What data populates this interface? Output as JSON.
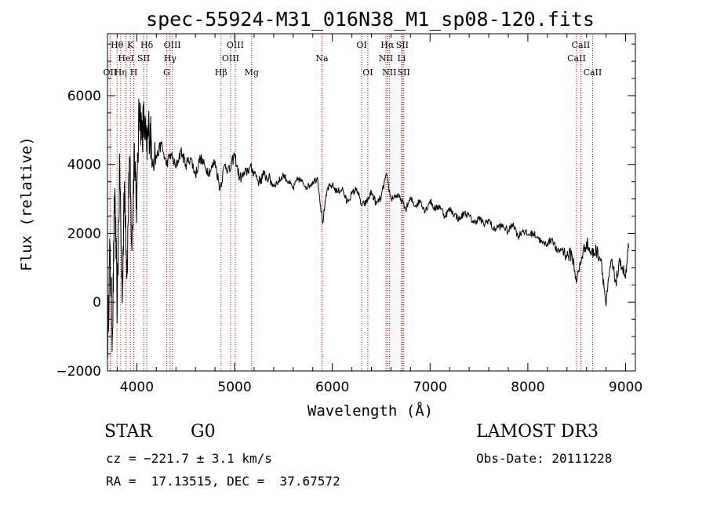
{
  "chart_data": {
    "type": "line",
    "title": "spec-55924-M31_016N38_M1_sp08-120.fits",
    "xlabel": "Wavelength (Å)",
    "ylabel": "Flux (relative)",
    "xlim": [
      3700,
      9100
    ],
    "ylim": [
      -2000,
      7800
    ],
    "x_ticks": [
      4000,
      5000,
      6000,
      7000,
      8000,
      9000
    ],
    "y_ticks": [
      -2000,
      0,
      2000,
      4000,
      6000
    ],
    "x_tick_labels": [
      "4000",
      "5000",
      "6000",
      "7000",
      "8000",
      "9000"
    ],
    "y_tick_labels": [
      "−2000",
      "0",
      "2000",
      "4000",
      "6000"
    ],
    "series": [
      {
        "name": "flux",
        "x": [
          3700,
          3725,
          3750,
          3775,
          3800,
          3825,
          3850,
          3875,
          3900,
          3925,
          3950,
          3975,
          4000,
          4025,
          4050,
          4075,
          4100,
          4125,
          4150,
          4200,
          4250,
          4300,
          4350,
          4400,
          4450,
          4500,
          4550,
          4600,
          4650,
          4700,
          4750,
          4800,
          4850,
          4900,
          4950,
          5000,
          5050,
          5100,
          5150,
          5200,
          5250,
          5300,
          5350,
          5400,
          5450,
          5500,
          5550,
          5600,
          5650,
          5700,
          5750,
          5800,
          5850,
          5900,
          5950,
          6000,
          6050,
          6100,
          6150,
          6200,
          6250,
          6300,
          6350,
          6400,
          6450,
          6500,
          6550,
          6600,
          6650,
          6700,
          6750,
          6800,
          6850,
          6900,
          6950,
          7000,
          7050,
          7100,
          7150,
          7200,
          7250,
          7300,
          7350,
          7400,
          7450,
          7500,
          7550,
          7600,
          7650,
          7700,
          7750,
          7800,
          7850,
          7900,
          7950,
          8000,
          8050,
          8100,
          8150,
          8200,
          8250,
          8300,
          8350,
          8400,
          8450,
          8500,
          8550,
          8600,
          8650,
          8700,
          8750,
          8800,
          8850,
          8900,
          8950,
          9000,
          9030
        ],
        "values": [
          -1300,
          1500,
          -1000,
          3300,
          -300,
          4000,
          200,
          3500,
          800,
          4200,
          1500,
          4600,
          2800,
          5800,
          4900,
          5300,
          4400,
          5100,
          4600,
          4200,
          4600,
          4000,
          4300,
          3900,
          4400,
          4000,
          4200,
          3700,
          4200,
          3900,
          3800,
          4100,
          3300,
          4000,
          3800,
          4300,
          3600,
          3700,
          3900,
          3800,
          3500,
          3700,
          3600,
          3400,
          3500,
          3700,
          3500,
          3300,
          3600,
          3450,
          3350,
          3500,
          3600,
          2300,
          3300,
          3400,
          3200,
          3300,
          2900,
          3150,
          3300,
          2800,
          2900,
          3200,
          2850,
          3050,
          3700,
          3000,
          3100,
          3000,
          2700,
          3000,
          2800,
          2950,
          2650,
          2950,
          2700,
          2800,
          2500,
          2700,
          2550,
          2400,
          2600,
          2500,
          2300,
          2450,
          2250,
          2400,
          2100,
          2200,
          2200,
          2050,
          2300,
          1900,
          2100,
          1950,
          2000,
          1900,
          1700,
          1700,
          1850,
          1450,
          1550,
          1350,
          1400,
          600,
          1300,
          1750,
          1400,
          1500,
          1250,
          -100,
          1200,
          600,
          1200,
          700,
          1600
        ]
      }
    ],
    "emission_lines": [
      {
        "label": "OII",
        "x": 3727,
        "row": 3
      },
      {
        "label": "Hθ",
        "x": 3798,
        "row": 1
      },
      {
        "label": "Hη",
        "x": 3835,
        "row": 3
      },
      {
        "label": "HeI",
        "x": 3889,
        "row": 2
      },
      {
        "label": "K",
        "x": 3934,
        "row": 1
      },
      {
        "label": "H",
        "x": 3969,
        "row": 3
      },
      {
        "label": "SII",
        "x": 4070,
        "row": 2
      },
      {
        "label": "Hδ",
        "x": 4102,
        "row": 1
      },
      {
        "label": "G",
        "x": 4305,
        "row": 3
      },
      {
        "label": "Hγ",
        "x": 4341,
        "row": 2
      },
      {
        "label": "OIII",
        "x": 4363,
        "row": 1
      },
      {
        "label": "Hβ",
        "x": 4861,
        "row": 3
      },
      {
        "label": "OIII",
        "x": 4959,
        "row": 2
      },
      {
        "label": "OIII",
        "x": 5007,
        "row": 1
      },
      {
        "label": "Mg",
        "x": 5175,
        "row": 3
      },
      {
        "label": "Na",
        "x": 5894,
        "row": 2
      },
      {
        "label": "OI",
        "x": 6300,
        "row": 1
      },
      {
        "label": "OI",
        "x": 6363,
        "row": 3
      },
      {
        "label": "NII",
        "x": 6548,
        "row": 2
      },
      {
        "label": "Hα",
        "x": 6563,
        "row": 1
      },
      {
        "label": "NII",
        "x": 6583,
        "row": 3
      },
      {
        "label": "Li",
        "x": 6708,
        "row": 2
      },
      {
        "label": "SII",
        "x": 6716,
        "row": 1
      },
      {
        "label": "SII",
        "x": 6731,
        "row": 3
      },
      {
        "label": "CaII",
        "x": 8498,
        "row": 2
      },
      {
        "label": "CaII",
        "x": 8542,
        "row": 1
      },
      {
        "label": "CaII",
        "x": 8662,
        "row": 3
      }
    ],
    "line_marker_color": "#b00000"
  },
  "info": {
    "class": "STAR",
    "subclass": "G0",
    "survey": "LAMOST DR3",
    "redshift": "cz = −221.7 ± 3.1 km/s",
    "obsdate": "Obs-Date: 20111228",
    "coords": "RA =  17.13515, DEC =  37.67572"
  }
}
